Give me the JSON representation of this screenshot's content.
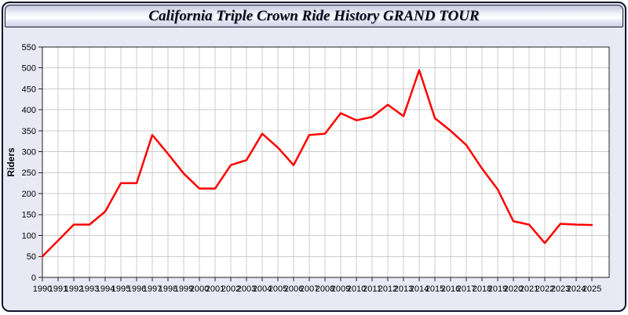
{
  "window": {
    "title": "California Triple Crown Ride History GRAND TOUR"
  },
  "theme": {
    "page_background": "#e9e9f6",
    "window_border": "#14142a",
    "titlebar_gradient_top": "#c7c7e1",
    "titlebar_gradient_middle": "#ffffff",
    "titlebar_gradient_bottom": "#cfcfe6",
    "line_color": "#ff0000",
    "grid_color": "#cccccc",
    "plot_background": "#ffffff",
    "axis_color": "#222222",
    "text_color": "#000000"
  },
  "chart_data": {
    "type": "line",
    "title": "California Triple Crown Ride History GRAND TOUR",
    "xlabel": "",
    "ylabel": "Riders",
    "x": [
      1990,
      1991,
      1992,
      1993,
      1994,
      1995,
      1996,
      1997,
      1998,
      1999,
      2000,
      2001,
      2002,
      2003,
      2004,
      2005,
      2006,
      2007,
      2008,
      2009,
      2010,
      2011,
      2012,
      2013,
      2014,
      2015,
      2016,
      2017,
      2018,
      2019,
      2020,
      2021,
      2022,
      2023,
      2024,
      2025
    ],
    "series": [
      {
        "name": "Riders",
        "color": "#ff0000",
        "values": [
          50,
          88,
          126,
          126,
          157,
          225,
          225,
          340,
          295,
          248,
          212,
          212,
          268,
          280,
          343,
          310,
          268,
          340,
          343,
          392,
          375,
          383,
          412,
          385,
          495,
          380,
          350,
          316,
          260,
          210,
          134,
          126,
          82,
          128,
          126,
          125
        ]
      }
    ],
    "ylim": [
      0,
      550
    ],
    "ytick_step": 50,
    "grid": true,
    "legend_position": "none",
    "line_width": 2.5
  }
}
